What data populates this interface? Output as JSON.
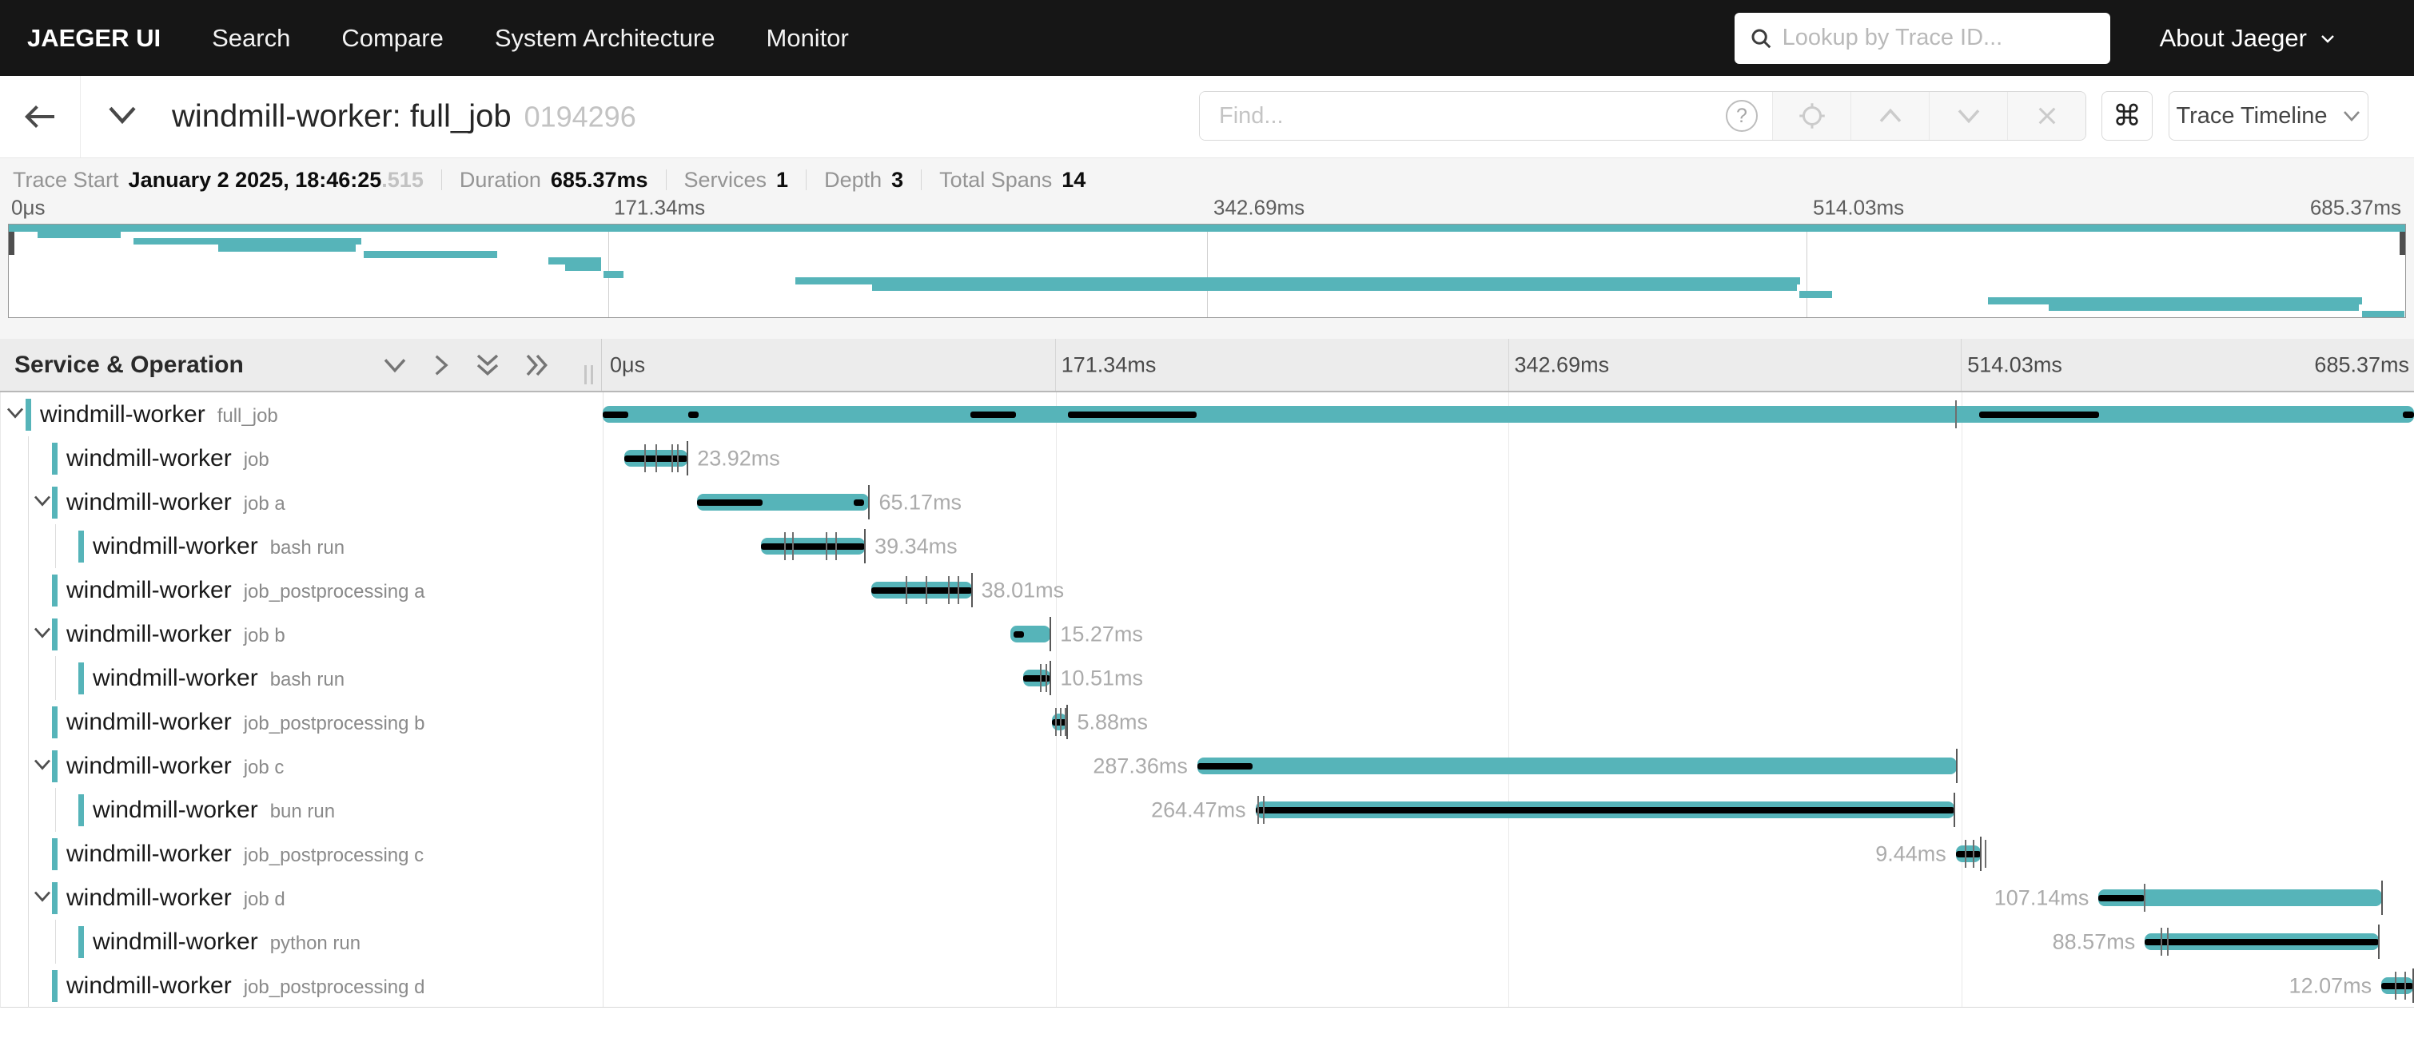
{
  "nav": {
    "brand": "JAEGER UI",
    "items": [
      "Search",
      "Compare",
      "System Architecture",
      "Monitor"
    ],
    "search_placeholder": "Lookup by Trace ID...",
    "about_label": "About Jaeger"
  },
  "trace_header": {
    "title": "windmill-worker: full_job",
    "trace_id_short": "0194296",
    "find_placeholder": "Find...",
    "help_glyph": "?",
    "keyboard_shortcut_glyph": "⌘",
    "view_selector_label": "Trace Timeline"
  },
  "summary": {
    "items": [
      {
        "label": "Trace Start",
        "value": "January 2 2025, 18:46:25",
        "suffix": ".515"
      },
      {
        "label": "Duration",
        "value": "685.37ms"
      },
      {
        "label": "Services",
        "value": "1"
      },
      {
        "label": "Depth",
        "value": "3"
      },
      {
        "label": "Total Spans",
        "value": "14"
      }
    ]
  },
  "timeline": {
    "table_header": "Service & Operation",
    "ticks": [
      "0μs",
      "171.34ms",
      "342.69ms",
      "514.03ms",
      "685.37ms"
    ],
    "duration_ms": 685.37
  },
  "colors": {
    "accent_teal": "#56b4b9",
    "critical_path": "#000000",
    "nav_bg": "#161616"
  },
  "spans": [
    {
      "service": "windmill-worker",
      "operation": "full_job",
      "depth": 0,
      "has_children": true,
      "start_ms": 0,
      "duration_ms": 685.37,
      "duration_label": "",
      "label_side": "none",
      "critical": [
        [
          0,
          0.014
        ],
        [
          0.047,
          0.053
        ],
        [
          0.203,
          0.228
        ],
        [
          0.257,
          0.328
        ],
        [
          0.76,
          0.826
        ],
        [
          0.994,
          1
        ]
      ],
      "ticks": [
        0.747
      ],
      "end_tick": false
    },
    {
      "service": "windmill-worker",
      "operation": "job",
      "depth": 1,
      "has_children": false,
      "start_ms": 8.2,
      "duration_ms": 23.92,
      "duration_label": "23.92ms",
      "label_side": "right",
      "critical": [
        [
          0,
          1
        ]
      ],
      "ticks": [
        0.33,
        0.5,
        0.76,
        0.85
      ],
      "end_tick": true
    },
    {
      "service": "windmill-worker",
      "operation": "job a",
      "depth": 1,
      "has_children": true,
      "start_ms": 35.7,
      "duration_ms": 65.17,
      "duration_label": "65.17ms",
      "label_side": "right",
      "critical": [
        [
          0,
          0.38
        ],
        [
          0.91,
          0.97
        ]
      ],
      "ticks": [],
      "end_tick": true
    },
    {
      "service": "windmill-worker",
      "operation": "bash run",
      "depth": 2,
      "has_children": false,
      "start_ms": 59.9,
      "duration_ms": 39.34,
      "duration_label": "39.34ms",
      "label_side": "right",
      "critical": [
        [
          0,
          1
        ]
      ],
      "ticks": [
        0.23,
        0.31,
        0.63,
        0.72
      ],
      "end_tick": true
    },
    {
      "service": "windmill-worker",
      "operation": "job_postprocessing a",
      "depth": 1,
      "has_children": false,
      "start_ms": 101.6,
      "duration_ms": 38.01,
      "duration_label": "38.01ms",
      "label_side": "right",
      "critical": [
        [
          0,
          1
        ]
      ],
      "ticks": [
        0.35,
        0.55,
        0.77,
        0.87
      ],
      "end_tick": true
    },
    {
      "service": "windmill-worker",
      "operation": "job b",
      "depth": 1,
      "has_children": true,
      "start_ms": 154.2,
      "duration_ms": 15.27,
      "duration_label": "15.27ms",
      "label_side": "right",
      "critical": [
        [
          0.09,
          0.34
        ]
      ],
      "ticks": [],
      "end_tick": true
    },
    {
      "service": "windmill-worker",
      "operation": "bash run",
      "depth": 2,
      "has_children": false,
      "start_ms": 159.0,
      "duration_ms": 10.51,
      "duration_label": "10.51ms",
      "label_side": "right",
      "critical": [
        [
          0,
          1
        ]
      ],
      "ticks": [
        0.64,
        0.85
      ],
      "end_tick": true
    },
    {
      "service": "windmill-worker",
      "operation": "job_postprocessing b",
      "depth": 1,
      "has_children": false,
      "start_ms": 170.0,
      "duration_ms": 5.88,
      "duration_label": "5.88ms",
      "label_side": "right",
      "critical": [
        [
          0,
          1
        ]
      ],
      "ticks": [
        0.25,
        0.55,
        0.85
      ],
      "end_tick": true
    },
    {
      "service": "windmill-worker",
      "operation": "job c",
      "depth": 1,
      "has_children": true,
      "start_ms": 225.0,
      "duration_ms": 287.36,
      "duration_label": "287.36ms",
      "label_side": "left",
      "critical": [
        [
          0,
          0.073
        ]
      ],
      "ticks": [],
      "end_tick": true
    },
    {
      "service": "windmill-worker",
      "operation": "bun run",
      "depth": 2,
      "has_children": false,
      "start_ms": 247.0,
      "duration_ms": 264.47,
      "duration_label": "264.47ms",
      "label_side": "left",
      "critical": [
        [
          0,
          1
        ]
      ],
      "ticks": [
        0.004,
        0.012
      ],
      "end_tick": true
    },
    {
      "service": "windmill-worker",
      "operation": "job_postprocessing c",
      "depth": 1,
      "has_children": false,
      "start_ms": 512.0,
      "duration_ms": 9.44,
      "duration_label": "9.44ms",
      "label_side": "left",
      "critical": [
        [
          0,
          1
        ]
      ],
      "ticks": [
        0.4,
        0.7,
        1.2
      ],
      "end_tick": true
    },
    {
      "service": "windmill-worker",
      "operation": "job d",
      "depth": 1,
      "has_children": true,
      "start_ms": 566.0,
      "duration_ms": 107.14,
      "duration_label": "107.14ms",
      "label_side": "left",
      "critical": [
        [
          0,
          0.163
        ]
      ],
      "ticks": [
        0.163
      ],
      "end_tick": true
    },
    {
      "service": "windmill-worker",
      "operation": "python run",
      "depth": 2,
      "has_children": false,
      "start_ms": 583.5,
      "duration_ms": 88.57,
      "duration_label": "88.57ms",
      "label_side": "left",
      "critical": [
        [
          0,
          1
        ]
      ],
      "ticks": [
        0.07,
        0.1
      ],
      "end_tick": true
    },
    {
      "service": "windmill-worker",
      "operation": "job_postprocessing d",
      "depth": 1,
      "has_children": false,
      "start_ms": 673.0,
      "duration_ms": 12.07,
      "duration_label": "12.07ms",
      "label_side": "left",
      "critical": [
        [
          0,
          1
        ]
      ],
      "ticks": [
        0.45,
        0.75,
        1.15
      ],
      "end_tick": true
    }
  ]
}
